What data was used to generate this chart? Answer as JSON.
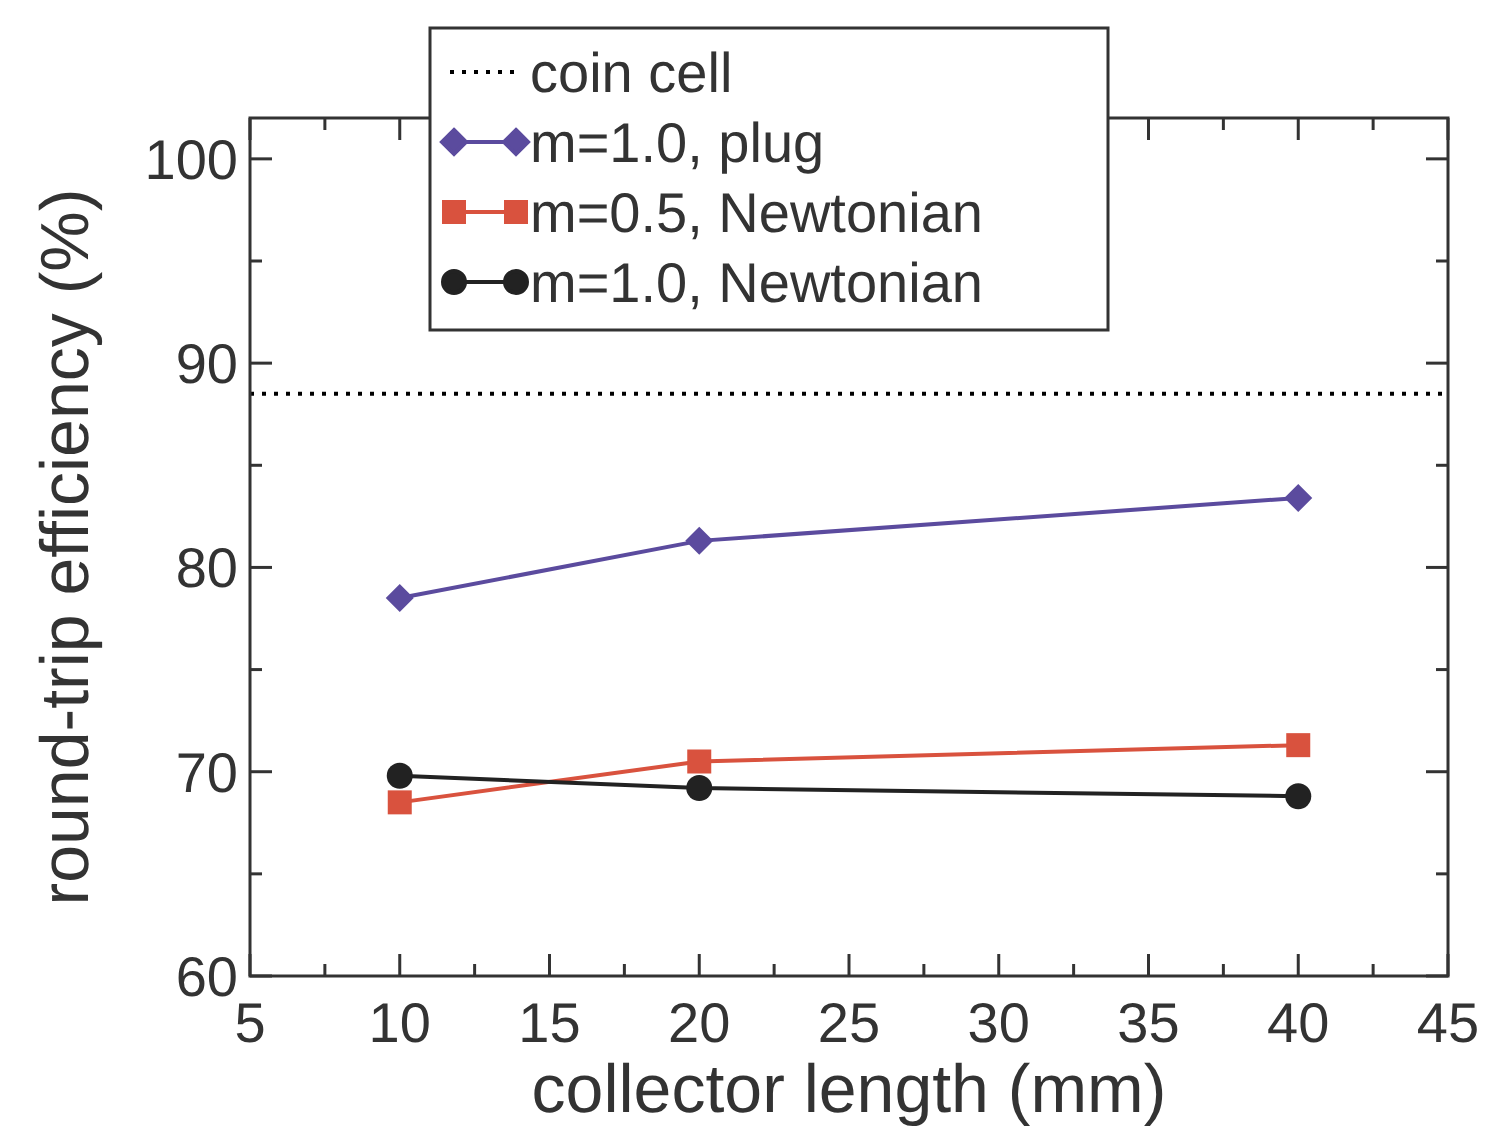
{
  "chart_data": {
    "type": "line",
    "xlabel": "collector length (mm)",
    "ylabel": "round-trip efficiency (%)",
    "x": [
      10,
      20,
      40
    ],
    "xlim": [
      5,
      45
    ],
    "xticks": [
      5,
      {
        "value": 7.5,
        "label": null
      },
      10,
      {
        "value": 12.5,
        "label": null
      },
      15,
      {
        "value": 17.5,
        "label": null
      },
      20,
      {
        "value": 22.5,
        "label": null
      },
      25,
      {
        "value": 27.5,
        "label": null
      },
      30,
      {
        "value": 32.5,
        "label": null
      },
      35,
      {
        "value": 37.5,
        "label": null
      },
      40,
      {
        "value": 42.5,
        "label": null
      },
      45
    ],
    "ylim": [
      60,
      102
    ],
    "yticks": [
      60,
      {
        "value": 65,
        "label": null
      },
      70,
      {
        "value": 75,
        "label": null
      },
      80,
      {
        "value": 85,
        "label": null
      },
      90,
      {
        "value": 95,
        "label": null
      },
      100
    ],
    "ref_lines": [
      {
        "axis": "y",
        "value": 88.5,
        "label": "coin cell",
        "color": "#000000",
        "line_style": "dotted"
      }
    ],
    "series": [
      {
        "name": "m=1.0, plug",
        "color": "#5b4b9e",
        "marker": "diamond",
        "values": [
          78.5,
          81.3,
          83.4
        ]
      },
      {
        "name": "m=0.5, Newtonian",
        "color": "#d9523e",
        "marker": "square",
        "values": [
          68.5,
          70.5,
          71.3
        ]
      },
      {
        "name": "m=1.0, Newtonian",
        "color": "#222222",
        "marker": "circle",
        "values": [
          69.8,
          69.2,
          68.8
        ]
      }
    ],
    "legend": "top",
    "grid": false
  }
}
